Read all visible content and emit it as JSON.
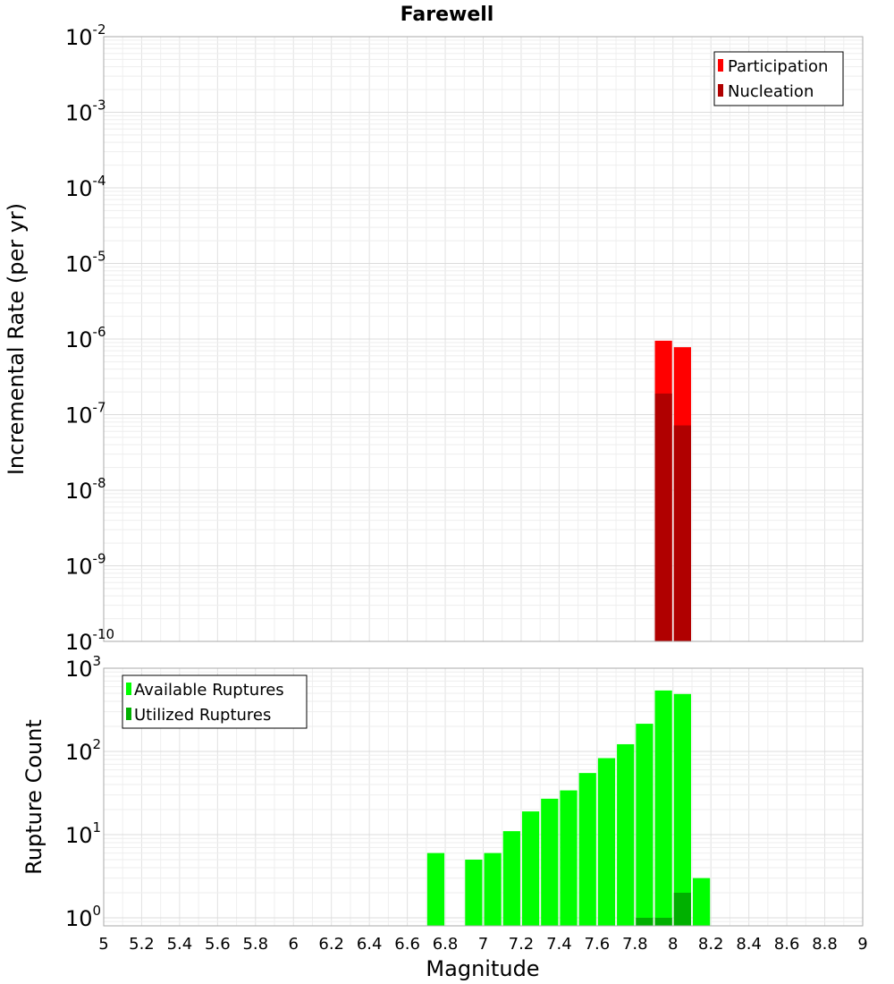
{
  "chart_data": [
    {
      "type": "bar",
      "title": "Farewell",
      "ylabel": "Incremental Rate (per yr)",
      "yscale": "log",
      "ylim": [
        1e-10,
        0.01
      ],
      "ytick_labels": [
        {
          "base": "10",
          "exp": "-10"
        },
        {
          "base": "10",
          "exp": "-9"
        },
        {
          "base": "10",
          "exp": "-8"
        },
        {
          "base": "10",
          "exp": "-7"
        },
        {
          "base": "10",
          "exp": "-6"
        },
        {
          "base": "10",
          "exp": "-5"
        },
        {
          "base": "10",
          "exp": "-4"
        },
        {
          "base": "10",
          "exp": "-3"
        },
        {
          "base": "10",
          "exp": "-2"
        }
      ],
      "xlim": [
        5,
        9
      ],
      "bar_width": 0.1,
      "grid": true,
      "legend_position": "top-right",
      "series": [
        {
          "name": "Participation",
          "color": "#ff0000",
          "points": [
            {
              "x": 7.95,
              "y": 9.5e-07
            },
            {
              "x": 8.05,
              "y": 7.8e-07
            }
          ]
        },
        {
          "name": "Nucleation",
          "color": "#b00000",
          "points": [
            {
              "x": 7.95,
              "y": 1.9e-07
            },
            {
              "x": 8.05,
              "y": 7.2e-08
            }
          ]
        }
      ]
    },
    {
      "type": "bar",
      "xlabel": "Magnitude",
      "ylabel": "Rupture Count",
      "yscale": "log",
      "ylim": [
        0.8,
        1000
      ],
      "ytick_labels": [
        {
          "base": "10",
          "exp": "0"
        },
        {
          "base": "10",
          "exp": "1"
        },
        {
          "base": "10",
          "exp": "2"
        },
        {
          "base": "10",
          "exp": "3"
        }
      ],
      "xlim": [
        5,
        9
      ],
      "xtick_labels": [
        "5",
        "5.2",
        "5.4",
        "5.6",
        "5.8",
        "6",
        "6.2",
        "6.4",
        "6.6",
        "6.8",
        "7",
        "7.2",
        "7.4",
        "7.6",
        "7.8",
        "8",
        "8.2",
        "8.4",
        "8.6",
        "8.8",
        "9"
      ],
      "bar_width": 0.1,
      "grid": true,
      "legend_position": "top-left",
      "series": [
        {
          "name": "Available Ruptures",
          "color": "#00ff00",
          "points": [
            {
              "x": 6.75,
              "y": 6
            },
            {
              "x": 6.95,
              "y": 5
            },
            {
              "x": 7.05,
              "y": 6
            },
            {
              "x": 7.15,
              "y": 11
            },
            {
              "x": 7.25,
              "y": 19
            },
            {
              "x": 7.35,
              "y": 27
            },
            {
              "x": 7.45,
              "y": 34
            },
            {
              "x": 7.55,
              "y": 55
            },
            {
              "x": 7.65,
              "y": 83
            },
            {
              "x": 7.75,
              "y": 122
            },
            {
              "x": 7.85,
              "y": 215
            },
            {
              "x": 7.95,
              "y": 540
            },
            {
              "x": 8.05,
              "y": 490
            },
            {
              "x": 8.15,
              "y": 3
            }
          ]
        },
        {
          "name": "Utilized Ruptures",
          "color": "#00b000",
          "points": [
            {
              "x": 7.85,
              "y": 1
            },
            {
              "x": 7.95,
              "y": 1
            },
            {
              "x": 8.05,
              "y": 2
            }
          ]
        }
      ]
    }
  ]
}
